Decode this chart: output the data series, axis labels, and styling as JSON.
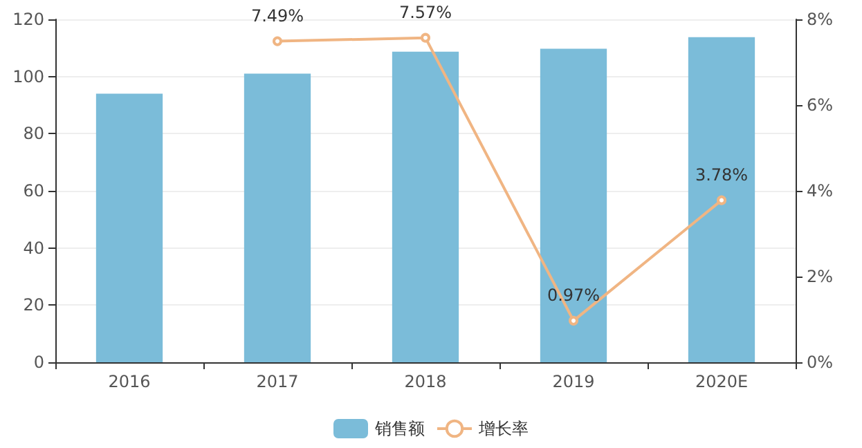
{
  "chart_data": {
    "type": "bar",
    "categories": [
      "2016",
      "2017",
      "2018",
      "2019",
      "2020E"
    ],
    "series": [
      {
        "name": "销售额",
        "color": "#7bbcd9",
        "values": [
          94,
          101,
          108.7,
          109.7,
          113.8
        ]
      },
      {
        "name": "增长率",
        "type": "line",
        "axis": "y2",
        "color": "#f0b583",
        "values": [
          null,
          7.49,
          7.57,
          0.97,
          3.78
        ],
        "value_labels": [
          null,
          "7.49%",
          "7.57%",
          "0.97%",
          "3.78%"
        ],
        "marker": "circle"
      }
    ],
    "ylim": [
      0,
      120
    ],
    "yticks": [
      0,
      20,
      40,
      60,
      80,
      100,
      120
    ],
    "y2lim": [
      0,
      8
    ],
    "y2ticks": [
      {
        "value": 0,
        "label": "0%"
      },
      {
        "value": 2,
        "label": "2%"
      },
      {
        "value": 4,
        "label": "4%"
      },
      {
        "value": 6,
        "label": "6%"
      },
      {
        "value": 8,
        "label": "8%"
      }
    ],
    "grid": "y",
    "legend": "bottom"
  }
}
